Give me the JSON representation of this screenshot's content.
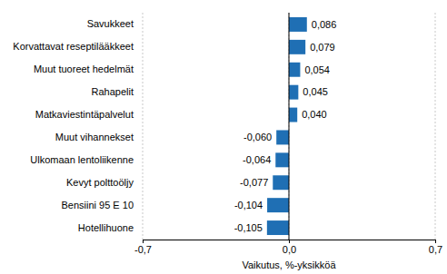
{
  "chart_data": {
    "type": "bar",
    "orientation": "horizontal",
    "categories": [
      "Savukkeet",
      "Korvattavat reseptilääkkeet",
      "Muut tuoreet hedelmät",
      "Rahapelit",
      "Matkaviestintäpalvelut",
      "Muut vihannekset",
      "Ulkomaan lentoliikenne",
      "Kevyt polttoöljy",
      "Bensiini 95 E 10",
      "Hotellihuone"
    ],
    "values": [
      0.086,
      0.079,
      0.054,
      0.045,
      0.04,
      -0.06,
      -0.064,
      -0.077,
      -0.104,
      -0.105
    ],
    "value_labels": [
      "0,086",
      "0,079",
      "0,054",
      "0,045",
      "0,040",
      "-0,060",
      "-0,064",
      "-0,077",
      "-0,104",
      "-0,105"
    ],
    "data_labels": true,
    "color": "#1f6fb4",
    "x_label": "Vaikutus, %-yksikköä",
    "xlim": [
      -0.7,
      0.7
    ],
    "xticks": [
      {
        "value": -0.7,
        "label": "-0,7"
      },
      {
        "value": 0,
        "label": "0,0"
      },
      {
        "value": 0.7,
        "label": "0,7"
      }
    ],
    "grid": true
  }
}
